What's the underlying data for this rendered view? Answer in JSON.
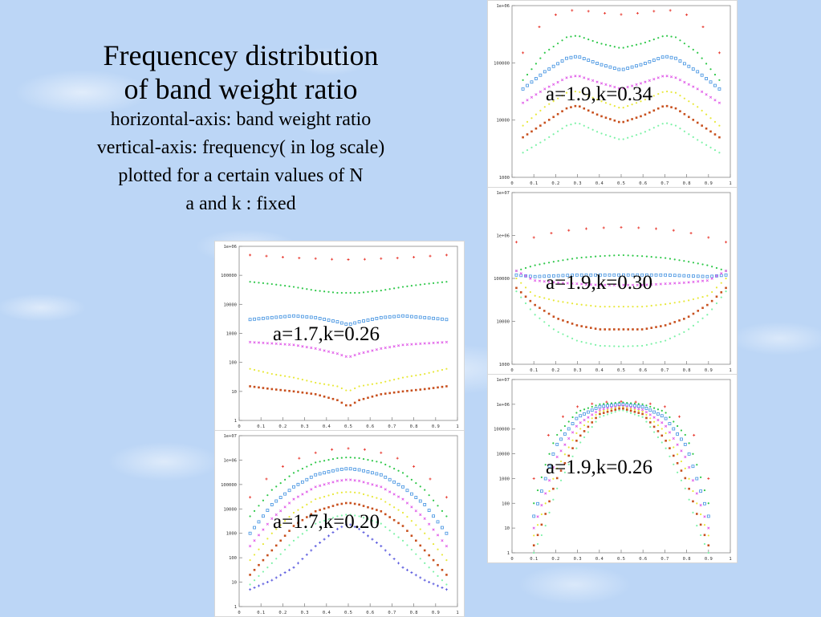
{
  "slide": {
    "title_lines": [
      "Frequencey distribution",
      "of band weight ratio"
    ],
    "description_lines": [
      "horizontal-axis: band weight ratio",
      "vertical-axis: frequency( in log scale)",
      "plotted for a certain values of N",
      "a and k : fixed"
    ]
  },
  "series_colors": [
    "#e8392f",
    "#2fc84a",
    "#3d8fe0",
    "#e05ae8",
    "#e8e83a",
    "#c8501e",
    "#7ef2a8",
    "#5555dd"
  ],
  "panels": [
    {
      "label": "a=1.9,k=0.34",
      "y_tick_labels": [
        "1e+06",
        "100000",
        "10000",
        "1000"
      ],
      "x_tick_labels": [
        "0",
        "0.1",
        "0.2",
        "0.3",
        "0.4",
        "0.5",
        "0.6",
        "0.7",
        "0.8",
        "0.9",
        "1"
      ]
    },
    {
      "label": "a=1.9,k=0.30",
      "y_tick_labels": [
        "1e+07",
        "1e+06",
        "100000",
        "10000",
        "1000"
      ],
      "x_tick_labels": [
        "0",
        "0.1",
        "0.2",
        "0.3",
        "0.4",
        "0.5",
        "0.6",
        "0.7",
        "0.8",
        "0.9",
        "1"
      ]
    },
    {
      "label": "a=1.7,k=0.26",
      "y_tick_labels": [
        "1e+06",
        "100000",
        "10000",
        "1000",
        "100",
        "10",
        "1"
      ],
      "x_tick_labels": [
        "0",
        "0.1",
        "0.2",
        "0.3",
        "0.4",
        "0.5",
        "0.6",
        "0.7",
        "0.8",
        "0.9",
        "1"
      ]
    },
    {
      "label": "a=1.9,k=0.26",
      "y_tick_labels": [
        "1e+07",
        "1e+06",
        "100000",
        "10000",
        "1000",
        "100",
        "10",
        "1"
      ],
      "x_tick_labels": [
        "0",
        "0.1",
        "0.2",
        "0.3",
        "0.4",
        "0.5",
        "0.6",
        "0.7",
        "0.8",
        "0.9",
        "1"
      ]
    },
    {
      "label": "a=1.7,k=0.20",
      "y_tick_labels": [
        "1e+07",
        "1e+06",
        "100000",
        "10000",
        "1000",
        "100",
        "10",
        "1"
      ],
      "x_tick_labels": [
        "0",
        "0.1",
        "0.2",
        "0.3",
        "0.4",
        "0.5",
        "0.6",
        "0.7",
        "0.8",
        "0.9",
        "1"
      ]
    }
  ],
  "chart_data": [
    {
      "type": "scatter",
      "title": "a=1.9,k=0.34",
      "ylog": true,
      "ylim": [
        1000,
        1000000
      ],
      "xlim": [
        0,
        1
      ],
      "x": [
        0.05,
        0.15,
        0.25,
        0.3,
        0.4,
        0.5,
        0.6,
        0.7,
        0.75,
        0.85,
        0.95
      ],
      "series": [
        {
          "values": [
            150000,
            600000,
            800000,
            850000,
            750000,
            700000,
            750000,
            850000,
            800000,
            600000,
            150000
          ]
        },
        {
          "values": [
            50000,
            150000,
            280000,
            300000,
            220000,
            180000,
            220000,
            300000,
            280000,
            150000,
            50000
          ]
        },
        {
          "values": [
            35000,
            70000,
            120000,
            130000,
            95000,
            75000,
            95000,
            130000,
            120000,
            70000,
            35000
          ]
        },
        {
          "values": [
            20000,
            35000,
            55000,
            60000,
            45000,
            35000,
            45000,
            60000,
            55000,
            35000,
            20000
          ]
        },
        {
          "values": [
            8000,
            17000,
            30000,
            32000,
            22000,
            16000,
            22000,
            32000,
            30000,
            17000,
            8000
          ]
        },
        {
          "values": [
            5000,
            9000,
            16000,
            18000,
            12000,
            9000,
            12000,
            18000,
            16000,
            9000,
            5000
          ]
        },
        {
          "values": [
            2700,
            4500,
            8000,
            9000,
            6000,
            4500,
            6000,
            9000,
            8000,
            4500,
            2700
          ]
        }
      ]
    },
    {
      "type": "scatter",
      "title": "a=1.9,k=0.30",
      "ylog": true,
      "ylim": [
        1000,
        10000000
      ],
      "xlim": [
        0,
        1
      ],
      "x": [
        0.02,
        0.1,
        0.2,
        0.3,
        0.4,
        0.5,
        0.6,
        0.7,
        0.8,
        0.9,
        0.98
      ],
      "series": [
        {
          "values": [
            700000,
            900000,
            1200000,
            1400000,
            1500000,
            1550000,
            1500000,
            1400000,
            1200000,
            900000,
            700000
          ]
        },
        {
          "values": [
            150000,
            200000,
            250000,
            300000,
            330000,
            350000,
            330000,
            300000,
            250000,
            200000,
            150000
          ]
        },
        {
          "values": [
            120000,
            110000,
            115000,
            120000,
            120000,
            120000,
            120000,
            120000,
            115000,
            110000,
            120000
          ]
        },
        {
          "values": [
            150000,
            90000,
            80000,
            75000,
            70000,
            70000,
            70000,
            75000,
            80000,
            90000,
            150000
          ]
        },
        {
          "values": [
            100000,
            40000,
            30000,
            25000,
            22000,
            22000,
            22000,
            25000,
            30000,
            40000,
            100000
          ]
        },
        {
          "values": [
            60000,
            25000,
            12000,
            8000,
            6500,
            6500,
            6500,
            8000,
            12000,
            25000,
            60000
          ]
        },
        {
          "values": [
            50000,
            15000,
            6000,
            3500,
            2700,
            2600,
            2700,
            3500,
            6000,
            15000,
            50000
          ]
        }
      ]
    },
    {
      "type": "scatter",
      "title": "a=1.7,k=0.26",
      "ylog": true,
      "ylim": [
        1,
        1000000
      ],
      "xlim": [
        0,
        1
      ],
      "x": [
        0.05,
        0.15,
        0.25,
        0.35,
        0.45,
        0.5,
        0.55,
        0.65,
        0.75,
        0.85,
        0.95
      ],
      "series": [
        {
          "values": [
            500000,
            450000,
            400000,
            380000,
            350000,
            350000,
            350000,
            380000,
            400000,
            450000,
            500000
          ]
        },
        {
          "values": [
            60000,
            50000,
            40000,
            30000,
            25000,
            25000,
            25000,
            30000,
            40000,
            50000,
            60000
          ]
        },
        {
          "values": [
            3000,
            3500,
            4000,
            3500,
            2500,
            2000,
            2500,
            3500,
            4000,
            3500,
            3000
          ]
        },
        {
          "values": [
            500,
            450,
            400,
            300,
            200,
            150,
            200,
            300,
            400,
            450,
            500
          ]
        },
        {
          "values": [
            60,
            40,
            30,
            20,
            15,
            10,
            15,
            20,
            30,
            40,
            60
          ]
        },
        {
          "values": [
            15,
            12,
            10,
            8,
            5,
            3,
            5,
            8,
            10,
            12,
            15
          ]
        }
      ]
    },
    {
      "type": "scatter",
      "title": "a=1.9,k=0.26",
      "ylog": true,
      "ylim": [
        1,
        10000000
      ],
      "xlim": [
        0,
        1
      ],
      "x": [
        0.1,
        0.15,
        0.2,
        0.3,
        0.4,
        0.5,
        0.6,
        0.7,
        0.8,
        0.85,
        0.9
      ],
      "series": [
        {
          "values": [
            1000,
            30000,
            200000,
            800000,
            1200000,
            1300000,
            1200000,
            800000,
            200000,
            30000,
            1000
          ]
        },
        {
          "values": [
            100,
            3000,
            50000,
            500000,
            1000000,
            1200000,
            1000000,
            500000,
            50000,
            3000,
            100
          ]
        },
        {
          "values": [
            30,
            800,
            20000,
            300000,
            800000,
            1000000,
            800000,
            300000,
            20000,
            800,
            30
          ]
        },
        {
          "values": [
            10,
            200,
            6000,
            150000,
            600000,
            900000,
            600000,
            150000,
            6000,
            200,
            10
          ]
        },
        {
          "values": [
            5,
            80,
            2000,
            80000,
            500000,
            800000,
            500000,
            80000,
            2000,
            80,
            5
          ]
        },
        {
          "values": [
            2,
            30,
            800,
            40000,
            400000,
            700000,
            400000,
            40000,
            800,
            30,
            2
          ]
        },
        {
          "values": [
            1,
            10,
            300,
            20000,
            300000,
            600000,
            300000,
            20000,
            300,
            10,
            1
          ]
        }
      ]
    },
    {
      "type": "scatter",
      "title": "a=1.7,k=0.20",
      "ylog": true,
      "ylim": [
        1,
        10000000
      ],
      "xlim": [
        0,
        1
      ],
      "x": [
        0.05,
        0.15,
        0.25,
        0.35,
        0.45,
        0.5,
        0.55,
        0.65,
        0.75,
        0.85,
        0.95
      ],
      "series": [
        {
          "values": [
            30000,
            300000,
            1000000,
            2000000,
            3000000,
            3000000,
            3000000,
            2000000,
            1000000,
            300000,
            30000
          ]
        },
        {
          "values": [
            5000,
            60000,
            300000,
            800000,
            1200000,
            1300000,
            1200000,
            800000,
            300000,
            60000,
            5000
          ]
        },
        {
          "values": [
            1000,
            15000,
            80000,
            250000,
            400000,
            450000,
            400000,
            250000,
            80000,
            15000,
            1000
          ]
        },
        {
          "values": [
            300,
            4000,
            25000,
            80000,
            140000,
            160000,
            140000,
            80000,
            25000,
            4000,
            300
          ]
        },
        {
          "values": [
            80,
            1000,
            7000,
            25000,
            45000,
            50000,
            45000,
            25000,
            7000,
            1000,
            80
          ]
        },
        {
          "values": [
            20,
            200,
            2000,
            8000,
            15000,
            18000,
            15000,
            8000,
            2000,
            200,
            20
          ]
        },
        {
          "values": [
            8,
            60,
            500,
            2500,
            5000,
            6000,
            5000,
            2500,
            500,
            60,
            8
          ]
        },
        {
          "values": [
            5,
            12,
            40,
            300,
            1500,
            2500,
            1500,
            300,
            40,
            12,
            5
          ]
        }
      ]
    }
  ]
}
